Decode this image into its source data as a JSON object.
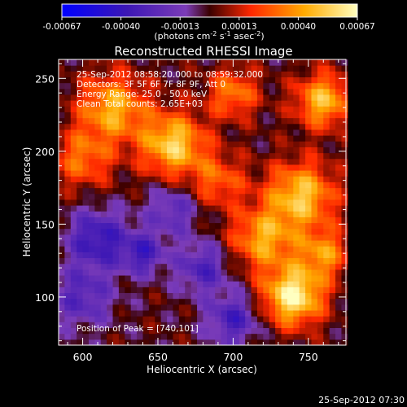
{
  "chart_data": {
    "type": "heatmap",
    "title": "Reconstructed RHESSI Image",
    "xlabel": "Heliocentric X (arcsec)",
    "ylabel": "Heliocentric Y (arcsec)",
    "xlim": [
      584,
      775
    ],
    "ylim": [
      67,
      263
    ],
    "xticks": [
      600,
      650,
      700,
      750
    ],
    "yticks": [
      100,
      150,
      200,
      250
    ],
    "colorbar": {
      "range": [
        -0.00067,
        0.00067
      ],
      "ticks": [
        "-0.00067",
        "-0.00040",
        "-0.00013",
        "0.00013",
        "0.00040",
        "0.00067"
      ],
      "unit_label_parts": [
        "(photons cm",
        "-2",
        " s",
        "-1",
        " asec",
        "-2",
        ")"
      ]
    },
    "annotations": [
      "25-Sep-2012 08:58:20.000 to 08:59:32.000",
      "Detectors: 3F 5F 6F 7F 8F 9F, Att 0",
      "Energy Range: 25.0 - 50.0 keV",
      "Clean    Total counts: 2.65E+03"
    ],
    "peak_label": "Position of Peak = [740,101]",
    "peak_position": [
      740,
      101
    ],
    "colors": {
      "background": "#000000",
      "text": "#ffffff",
      "colormap_stops": [
        "#0000ff",
        "#3c17b5",
        "#7c3cb8",
        "#3a0000",
        "#ff2800",
        "#ffaa00",
        "#ffffc0"
      ]
    }
  },
  "footer": {
    "timestamp": "25-Sep-2012 07:30"
  }
}
